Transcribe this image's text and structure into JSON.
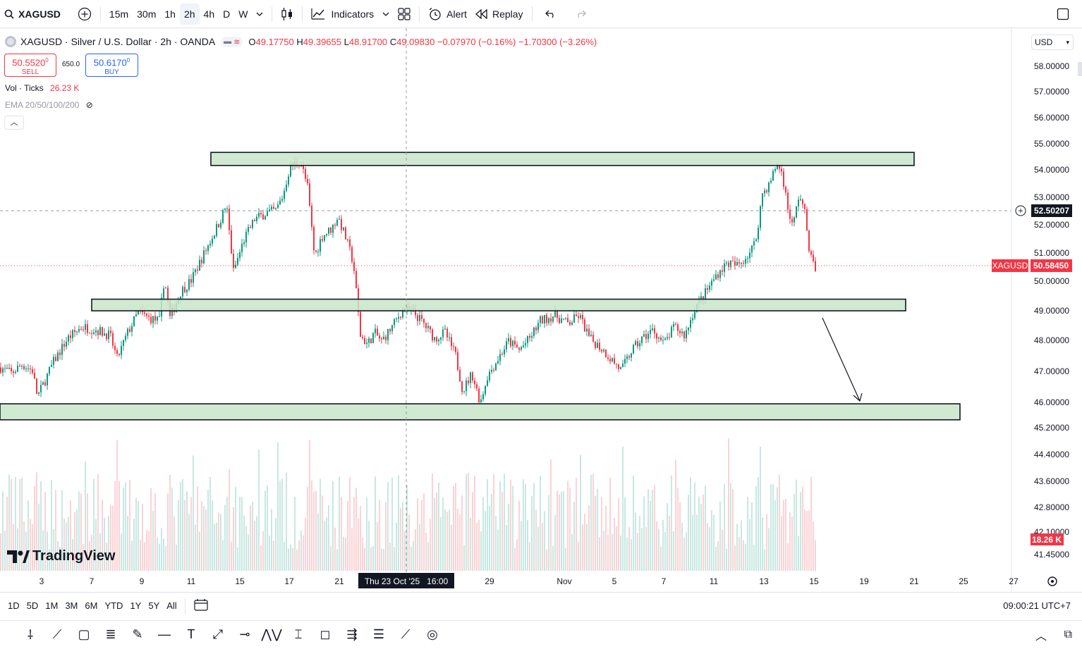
{
  "toolbar": {
    "symbol": "XAGUSD",
    "intervals": [
      "15m",
      "30m",
      "1h",
      "2h",
      "4h",
      "D",
      "W"
    ],
    "active_interval": "2h",
    "indicators_label": "Indicators",
    "alert_label": "Alert",
    "replay_label": "Replay"
  },
  "legend": {
    "title": "XAGUSD · Silver / U.S. Dollar · 2h · OANDA",
    "o_label": "O",
    "o": "49.17750",
    "h_label": "H",
    "h": "49.39655",
    "l_label": "L",
    "l": "48.91700",
    "c_label": "C",
    "c": "49.09830",
    "change": "−0.07970 (−0.16%)",
    "change2": "−1.70300 (−3.26%)"
  },
  "trade": {
    "sell_price": "50.5520",
    "sell_sup": "0",
    "sell_label": "SELL",
    "spread": "650.0",
    "buy_price": "50.6170",
    "buy_sup": "0",
    "buy_label": "BUY"
  },
  "indicators": {
    "vol_label": "Vol · Ticks",
    "vol_value": "26.23 K",
    "ema_label": "EMA 20/50/100/200"
  },
  "currency": "USD",
  "price_scale": [
    "58.00000",
    "57.00000",
    "56.00000",
    "55.00000",
    "54.00000",
    "53.00000",
    "52.00000",
    "51.00000",
    "50.00000",
    "49.00000",
    "48.00000",
    "47.00000",
    "46.00000",
    "45.20000",
    "44.40000",
    "43.60000",
    "42.80000",
    "42.10000",
    "41.45000"
  ],
  "crosshair_price": "52.50207",
  "last_price_symbol": "XAGUSD",
  "last_price": "50.58450",
  "volume_label": "18.26 K",
  "time_axis": [
    "3",
    "7",
    "9",
    "11",
    "15",
    "17",
    "21",
    "29",
    "Nov",
    "5",
    "7",
    "11",
    "13",
    "15",
    "19",
    "21",
    "25",
    "27"
  ],
  "crosshair_time": "Thu 23 Oct '25   16:00",
  "logo": "TradingView",
  "ranges": [
    "1D",
    "5D",
    "1M",
    "3M",
    "6M",
    "YTD",
    "1Y",
    "5Y",
    "All"
  ],
  "clock": "09:00:21 UTC+7",
  "colors": {
    "up": "#089981",
    "down": "#f23645",
    "zone_fill": "#c8e6c9",
    "accent": "#2962ff"
  },
  "chart_data": {
    "type": "candlestick",
    "path": [
      [
        0,
        47.2
      ],
      [
        15,
        47.0
      ],
      [
        30,
        47.3
      ],
      [
        45,
        47.1
      ],
      [
        52,
        46.2
      ],
      [
        60,
        46.6
      ],
      [
        75,
        47.4
      ],
      [
        95,
        48.2
      ],
      [
        115,
        48.6
      ],
      [
        135,
        48.5
      ],
      [
        155,
        48.3
      ],
      [
        165,
        47.5
      ],
      [
        180,
        48.4
      ],
      [
        195,
        49.1
      ],
      [
        210,
        48.9
      ],
      [
        225,
        48.8
      ],
      [
        232,
        50.3
      ],
      [
        240,
        48.9
      ],
      [
        255,
        49.8
      ],
      [
        270,
        50.2
      ],
      [
        290,
        51.2
      ],
      [
        310,
        52.2
      ],
      [
        320,
        52.8
      ],
      [
        330,
        50.5
      ],
      [
        345,
        51.6
      ],
      [
        360,
        52.3
      ],
      [
        375,
        52.5
      ],
      [
        390,
        52.6
      ],
      [
        400,
        53.1
      ],
      [
        410,
        54.1
      ],
      [
        425,
        54.3
      ],
      [
        435,
        53.4
      ],
      [
        445,
        51.0
      ],
      [
        455,
        51.7
      ],
      [
        470,
        52.0
      ],
      [
        478,
        52.4
      ],
      [
        490,
        51.6
      ],
      [
        500,
        50.8
      ],
      [
        510,
        48.3
      ],
      [
        520,
        48.0
      ],
      [
        530,
        48.4
      ],
      [
        540,
        48.1
      ],
      [
        555,
        48.6
      ],
      [
        570,
        49.2
      ],
      [
        585,
        49.1
      ],
      [
        600,
        48.7
      ],
      [
        615,
        48.2
      ],
      [
        630,
        48.4
      ],
      [
        645,
        47.6
      ],
      [
        655,
        46.4
      ],
      [
        668,
        47.0
      ],
      [
        680,
        46.0
      ],
      [
        690,
        46.9
      ],
      [
        705,
        47.5
      ],
      [
        720,
        48.1
      ],
      [
        735,
        47.8
      ],
      [
        750,
        48.2
      ],
      [
        765,
        48.8
      ],
      [
        785,
        49.0
      ],
      [
        805,
        48.7
      ],
      [
        820,
        49.0
      ],
      [
        835,
        48.2
      ],
      [
        850,
        47.9
      ],
      [
        865,
        47.5
      ],
      [
        880,
        47.1
      ],
      [
        895,
        47.8
      ],
      [
        910,
        48.2
      ],
      [
        925,
        48.5
      ],
      [
        940,
        48.0
      ],
      [
        955,
        48.6
      ],
      [
        970,
        48.3
      ],
      [
        985,
        49.3
      ],
      [
        1000,
        49.8
      ],
      [
        1015,
        50.4
      ],
      [
        1030,
        50.8
      ],
      [
        1045,
        50.7
      ],
      [
        1060,
        51.1
      ],
      [
        1070,
        51.5
      ],
      [
        1080,
        53.2
      ],
      [
        1090,
        53.5
      ],
      [
        1100,
        54.2
      ],
      [
        1108,
        53.9
      ],
      [
        1115,
        52.8
      ],
      [
        1123,
        52.0
      ],
      [
        1132,
        53.2
      ],
      [
        1140,
        52.5
      ],
      [
        1148,
        51.0
      ],
      [
        1157,
        50.5
      ]
    ],
    "zones": [
      {
        "top": 54.6,
        "bottom": 54.15
      },
      {
        "top": 49.55,
        "bottom": 49.15
      },
      {
        "top": 45.95,
        "bottom": 45.4
      }
    ],
    "projection": {
      "from": 49.1,
      "to": 46.0
    }
  }
}
